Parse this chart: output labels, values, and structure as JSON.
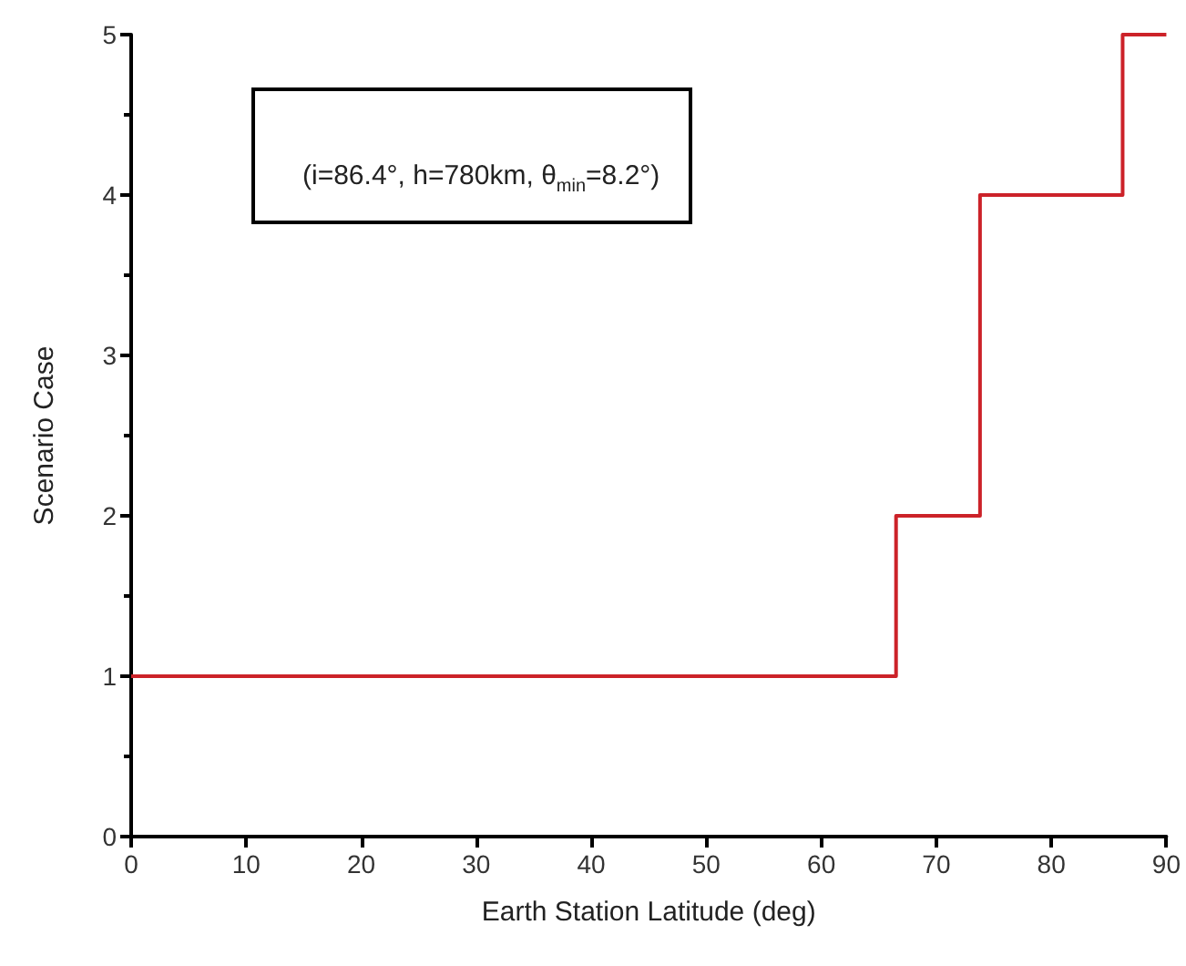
{
  "chart_data": {
    "type": "step",
    "xlabel": "Earth Station Latitude (deg)",
    "ylabel": "Scenario Case",
    "annotations": [
      "(i=86.4°, h=780km, θ$_{min}$=8.2°)"
    ],
    "x": [
      0,
      66.5,
      73.8,
      86.2,
      90
    ],
    "series": [
      {
        "color": "#cc2229",
        "values": [
          1,
          2,
          4,
          5,
          5
        ]
      }
    ],
    "xlim": [
      0,
      90
    ],
    "xticks": [
      0,
      10,
      20,
      30,
      40,
      50,
      60,
      70,
      80,
      90
    ],
    "ylim": [
      0,
      5
    ],
    "yticks": [
      0,
      1,
      2,
      3,
      4,
      5
    ],
    "grid": false,
    "marker": "none",
    "line_style": "solid"
  }
}
